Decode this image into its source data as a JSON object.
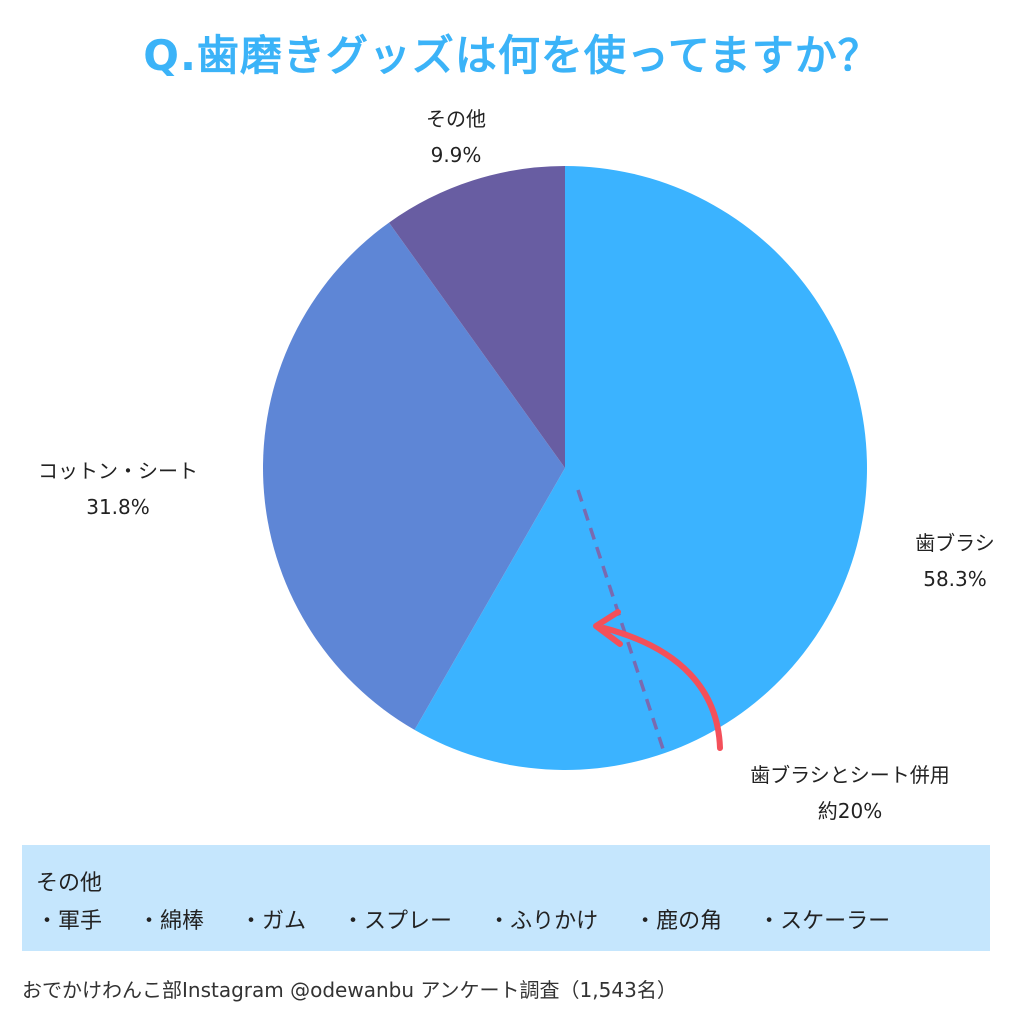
{
  "title": "Q.歯磨きグッズは何を使ってますか？",
  "colors": {
    "title": "#3bb3f8",
    "toothbrush": "#3bb3ff",
    "cotton_sheet": "#5e86d6",
    "other": "#685da2",
    "arrow": "#f4505a",
    "dash": "#7a6ab0",
    "note_bg": "#c5e6fd"
  },
  "chart_data": {
    "type": "pie",
    "title": "Q.歯磨きグッズは何を使ってますか？",
    "slices": [
      {
        "label": "歯ブラシ",
        "value": 58.3,
        "display": "58.3%",
        "color": "#3bb3ff"
      },
      {
        "label": "コットン・シート",
        "value": 31.8,
        "display": "31.8%",
        "color": "#5e86d6"
      },
      {
        "label": "その他",
        "value": 9.9,
        "display": "9.9%",
        "color": "#685da2"
      }
    ],
    "start_angle_deg": 0,
    "direction": "clockwise",
    "annotation": {
      "label": "歯ブラシとシート併用",
      "value_text": "約20%",
      "approx_value": 20
    }
  },
  "note": {
    "title": "その他",
    "items": [
      "・軍手",
      "・綿棒",
      "・ガム",
      "・スプレー",
      "・ふりかけ",
      "・鹿の角",
      "・スケーラー"
    ]
  },
  "source": "おでかけわんこ部Instagram @odewanbu アンケート調査（1,543名）"
}
